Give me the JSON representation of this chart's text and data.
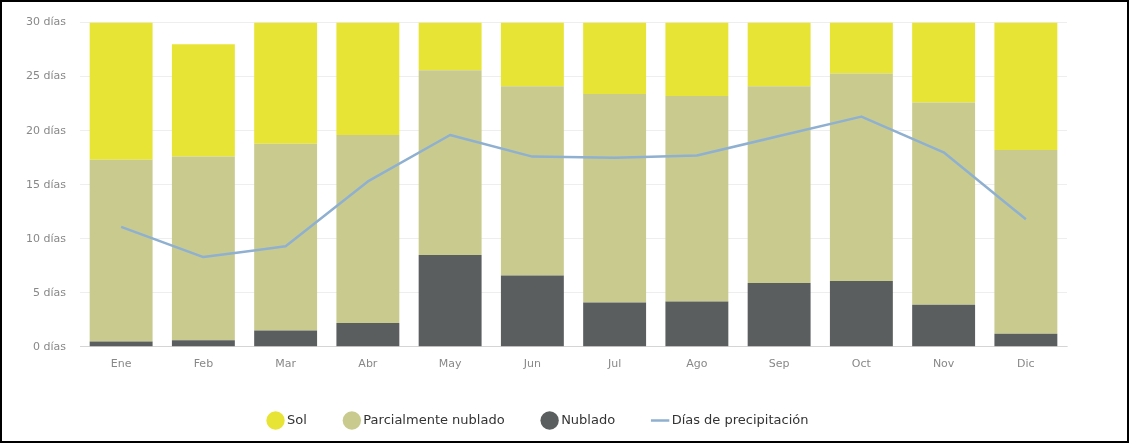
{
  "chart_data": {
    "type": "bar",
    "stacked": true,
    "categories": [
      "Ene",
      "Feb",
      "Mar",
      "Abr",
      "May",
      "Jun",
      "Jul",
      "Ago",
      "Sep",
      "Oct",
      "Nov",
      "Dic"
    ],
    "series": [
      {
        "name": "Nublado",
        "color": "#5a5e5f",
        "values": [
          0.5,
          0.6,
          1.5,
          2.2,
          8.5,
          6.6,
          4.1,
          4.2,
          5.9,
          6.1,
          3.9,
          1.2
        ]
      },
      {
        "name": "Parcialmente nublado",
        "color": "#c9cb8e",
        "values": [
          16.8,
          17.0,
          17.3,
          17.4,
          17.1,
          17.5,
          19.3,
          19.0,
          18.2,
          19.2,
          18.7,
          17.0
        ]
      },
      {
        "name": "Sol",
        "color": "#e8e435",
        "values": [
          12.7,
          10.4,
          11.2,
          10.4,
          4.4,
          5.9,
          6.6,
          6.8,
          5.9,
          4.7,
          7.4,
          11.8
        ]
      },
      {
        "name": "Días de precipitación",
        "type": "line",
        "color": "#8fb0d0",
        "values": [
          11.1,
          8.3,
          9.3,
          15.3,
          19.6,
          17.6,
          17.5,
          17.7,
          19.5,
          21.3,
          18.0,
          11.8
        ]
      }
    ],
    "ylim": [
      0,
      30
    ],
    "yticks": [
      {
        "value": 0,
        "label": "0 días"
      },
      {
        "value": 5,
        "label": "5 días"
      },
      {
        "value": 10,
        "label": "10 días"
      },
      {
        "value": 15,
        "label": "15 días"
      },
      {
        "value": 20,
        "label": "20 días"
      },
      {
        "value": 25,
        "label": "25 días"
      },
      {
        "value": 30,
        "label": "30 días"
      }
    ],
    "grid": "y",
    "legend": "bottom",
    "marker": "none",
    "line_style": "solid"
  }
}
